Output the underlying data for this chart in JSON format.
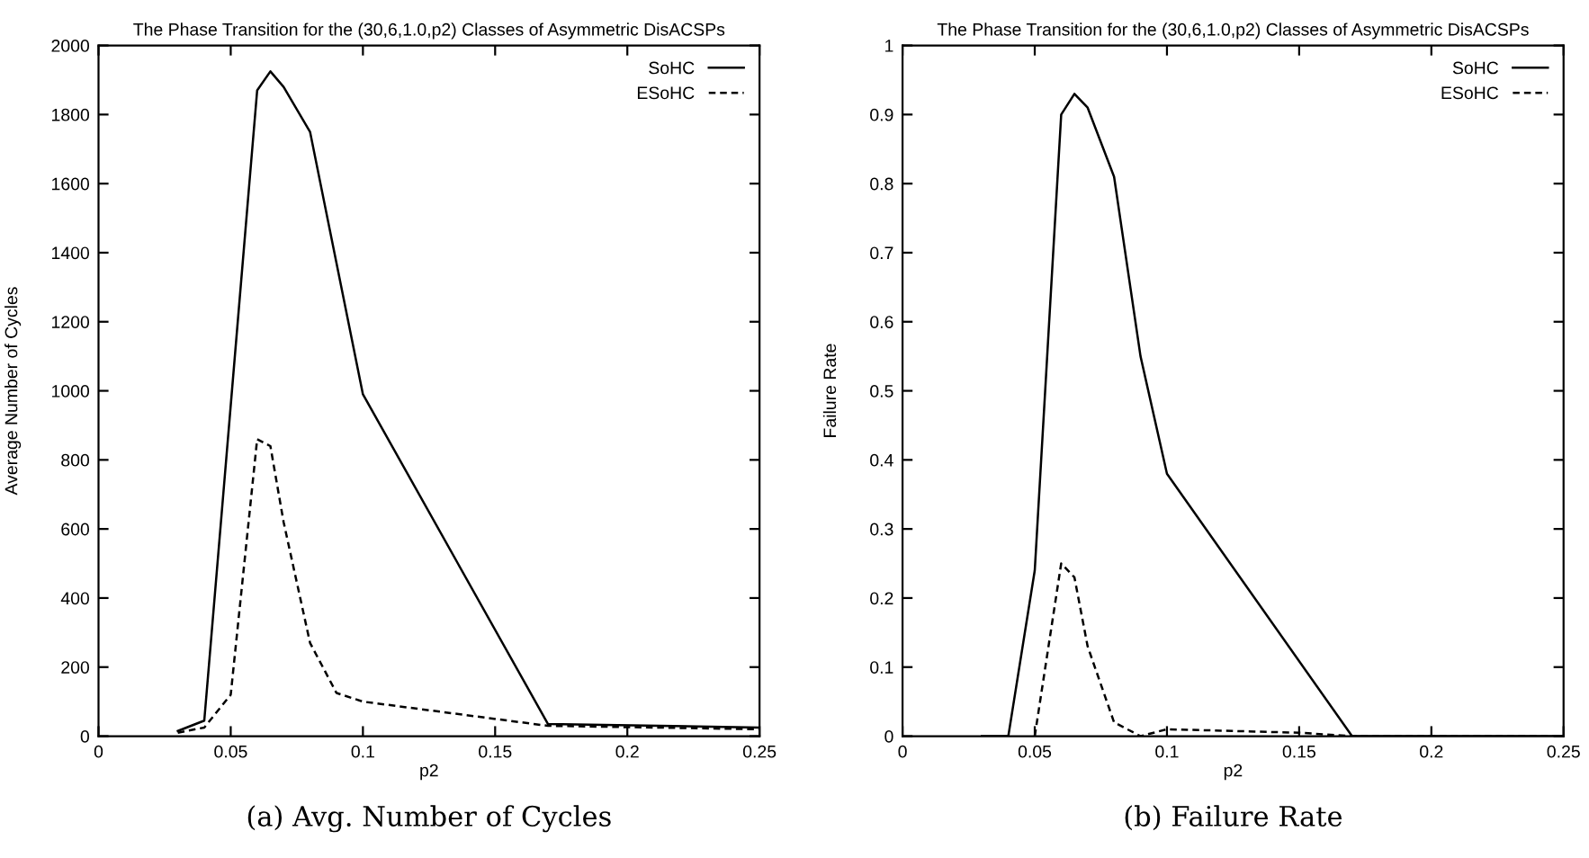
{
  "chart_data": [
    {
      "type": "line",
      "title": "The Phase Transition for the (30,6,1.0,p2) Classes of Asymmetric DisACSPs",
      "xlabel": "p2",
      "ylabel": "Average Number of Cycles",
      "xlim": [
        0,
        0.25
      ],
      "xticks": [
        0,
        0.05,
        0.1,
        0.15,
        0.2,
        0.25
      ],
      "ylim": [
        0,
        2000
      ],
      "yticks": [
        0,
        200,
        400,
        600,
        800,
        1000,
        1200,
        1400,
        1600,
        1800,
        2000
      ],
      "grid": false,
      "legend": "top right",
      "annotations": [
        "(a) Avg. Number of Cycles"
      ],
      "series": [
        {
          "name": "SoHC",
          "color": "#000000",
          "line_style": "solid",
          "x": [
            0.03,
            0.04,
            0.06,
            0.065,
            0.07,
            0.08,
            0.09,
            0.1,
            0.17,
            0.25
          ],
          "values": [
            15,
            45,
            1870,
            1925,
            1880,
            1750,
            1370,
            990,
            35,
            25
          ]
        },
        {
          "name": "ESoHC",
          "color": "#000000",
          "line_style": "dashed",
          "x": [
            0.03,
            0.04,
            0.05,
            0.06,
            0.065,
            0.07,
            0.08,
            0.09,
            0.1,
            0.17,
            0.25
          ],
          "values": [
            10,
            25,
            120,
            860,
            840,
            620,
            270,
            125,
            100,
            30,
            20
          ]
        }
      ]
    },
    {
      "type": "line",
      "title": "The Phase Transition for the (30,6,1.0,p2) Classes of Asymmetric DisACSPs",
      "xlabel": "p2",
      "ylabel": "Failure Rate",
      "xlim": [
        0,
        0.25
      ],
      "xticks": [
        0,
        0.05,
        0.1,
        0.15,
        0.2,
        0.25
      ],
      "ylim": [
        0,
        1
      ],
      "yticks": [
        0,
        0.1,
        0.2,
        0.3,
        0.4,
        0.5,
        0.6,
        0.7,
        0.8,
        0.9,
        1
      ],
      "grid": false,
      "legend": "top right",
      "annotations": [
        "(b) Failure Rate"
      ],
      "series": [
        {
          "name": "SoHC",
          "color": "#000000",
          "line_style": "solid",
          "x": [
            0.03,
            0.04,
            0.05,
            0.06,
            0.065,
            0.07,
            0.08,
            0.09,
            0.1,
            0.17,
            0.25
          ],
          "values": [
            0,
            0,
            0.24,
            0.9,
            0.93,
            0.91,
            0.81,
            0.55,
            0.38,
            0,
            0
          ]
        },
        {
          "name": "ESoHC",
          "color": "#000000",
          "line_style": "dashed",
          "x": [
            0.05,
            0.06,
            0.065,
            0.07,
            0.08,
            0.09,
            0.1,
            0.15,
            0.17,
            0.25
          ],
          "values": [
            0,
            0.25,
            0.23,
            0.13,
            0.02,
            0,
            0.01,
            0.005,
            0,
            0
          ]
        }
      ]
    }
  ]
}
